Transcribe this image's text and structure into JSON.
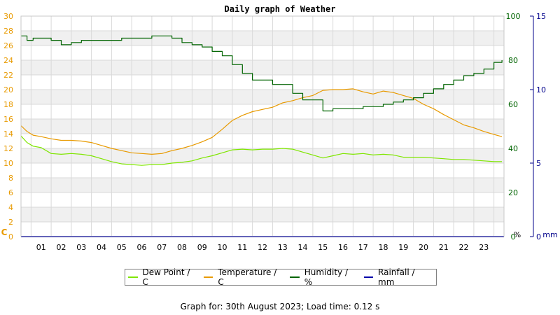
{
  "chart_data": {
    "type": "line",
    "title": "Daily graph of Weather",
    "x_ticks": [
      "01",
      "02",
      "03",
      "04",
      "05",
      "06",
      "07",
      "08",
      "09",
      "10",
      "11",
      "12",
      "13",
      "14",
      "15",
      "16",
      "17",
      "18",
      "19",
      "20",
      "21",
      "22",
      "23"
    ],
    "xlim": [
      0,
      24
    ],
    "axes": {
      "celsius": {
        "range": [
          0,
          30
        ],
        "ticks": [
          0,
          2,
          4,
          6,
          8,
          10,
          12,
          14,
          16,
          18,
          20,
          22,
          24,
          26,
          28,
          30
        ],
        "unit": "C",
        "color": "#e89a00"
      },
      "percent": {
        "range": [
          0,
          100
        ],
        "ticks": [
          0,
          20,
          40,
          60,
          80,
          100
        ],
        "unit": "%",
        "color": "#006400"
      },
      "mm": {
        "range": [
          0,
          15
        ],
        "ticks": [
          0,
          5,
          10,
          15
        ],
        "unit": "mm",
        "color": "#00008b"
      }
    },
    "grid": true,
    "legend_position": "bottom",
    "series": [
      {
        "name": "Dew Point / C",
        "axis": "celsius",
        "color": "#7fe600",
        "x": [
          0,
          0.3,
          0.6,
          1,
          1.5,
          2,
          2.5,
          3,
          3.5,
          4,
          4.5,
          5,
          5.5,
          6,
          6.5,
          7,
          7.5,
          8,
          8.5,
          9,
          9.5,
          10,
          10.5,
          11,
          11.5,
          12,
          12.5,
          13,
          13.5,
          14,
          14.5,
          15,
          15.5,
          16,
          16.5,
          17,
          17.5,
          18,
          18.5,
          19,
          19.5,
          20,
          20.5,
          21,
          21.5,
          22,
          22.5,
          23,
          23.5,
          23.9
        ],
        "values": [
          13.7,
          12.8,
          12.3,
          12.1,
          11.3,
          11.2,
          11.3,
          11.2,
          11.0,
          10.6,
          10.2,
          9.9,
          9.8,
          9.7,
          9.8,
          9.8,
          10.0,
          10.1,
          10.3,
          10.7,
          11.0,
          11.4,
          11.8,
          11.9,
          11.8,
          11.9,
          11.9,
          12.0,
          11.9,
          11.5,
          11.1,
          10.7,
          11.0,
          11.3,
          11.2,
          11.3,
          11.1,
          11.2,
          11.1,
          10.8,
          10.8,
          10.8,
          10.7,
          10.6,
          10.5,
          10.5,
          10.4,
          10.3,
          10.2,
          10.2
        ]
      },
      {
        "name": "Temperature / C",
        "axis": "celsius",
        "color": "#e89a00",
        "x": [
          0,
          0.3,
          0.6,
          1,
          1.5,
          2,
          2.5,
          3,
          3.5,
          4,
          4.5,
          5,
          5.5,
          6,
          6.5,
          7,
          7.5,
          8,
          8.5,
          9,
          9.5,
          10,
          10.5,
          11,
          11.5,
          12,
          12.5,
          13,
          13.5,
          14,
          14.5,
          15,
          15.5,
          16,
          16.5,
          17,
          17.5,
          18,
          18.5,
          19,
          19.5,
          20,
          20.5,
          21,
          21.5,
          22,
          22.5,
          23,
          23.5,
          23.9
        ],
        "values": [
          15.1,
          14.3,
          13.8,
          13.6,
          13.3,
          13.1,
          13.1,
          13.0,
          12.8,
          12.4,
          12.0,
          11.7,
          11.4,
          11.3,
          11.2,
          11.3,
          11.7,
          12.0,
          12.4,
          12.9,
          13.5,
          14.6,
          15.8,
          16.5,
          17.0,
          17.3,
          17.6,
          18.2,
          18.5,
          18.9,
          19.2,
          19.9,
          20.0,
          20.0,
          20.1,
          19.7,
          19.4,
          19.8,
          19.6,
          19.2,
          18.8,
          18.0,
          17.4,
          16.6,
          15.9,
          15.2,
          14.8,
          14.3,
          13.9,
          13.6
        ]
      },
      {
        "name": "Humidity / %",
        "axis": "percent",
        "color": "#006400",
        "step": true,
        "x": [
          0,
          0.3,
          0.6,
          1,
          1.5,
          2,
          2.5,
          3,
          3.5,
          4,
          4.5,
          5,
          5.5,
          6,
          6.5,
          7,
          7.5,
          8,
          8.5,
          9,
          9.5,
          10,
          10.5,
          11,
          11.5,
          12,
          12.5,
          13,
          13.5,
          14,
          14.5,
          15,
          15.5,
          16,
          16.5,
          17,
          17.5,
          18,
          18.5,
          19,
          19.5,
          20,
          20.5,
          21,
          21.5,
          22,
          22.5,
          23,
          23.5,
          23.9
        ],
        "values": [
          91,
          89,
          90,
          90,
          89,
          87,
          88,
          89,
          89,
          89,
          89,
          90,
          90,
          90,
          91,
          91,
          90,
          88,
          87,
          86,
          84,
          82,
          78,
          74,
          71,
          71,
          69,
          69,
          65,
          62,
          62,
          57,
          58,
          58,
          58,
          59,
          59,
          60,
          61,
          62,
          63,
          65,
          67,
          69,
          71,
          73,
          74,
          76,
          79,
          80
        ]
      },
      {
        "name": "Rainfall / mm",
        "axis": "mm",
        "color": "#0000aa",
        "x": [
          0,
          24
        ],
        "values": [
          0,
          0
        ]
      }
    ]
  },
  "footer_text": "Graph for: 30th August 2023; Load time: 0.12 s"
}
